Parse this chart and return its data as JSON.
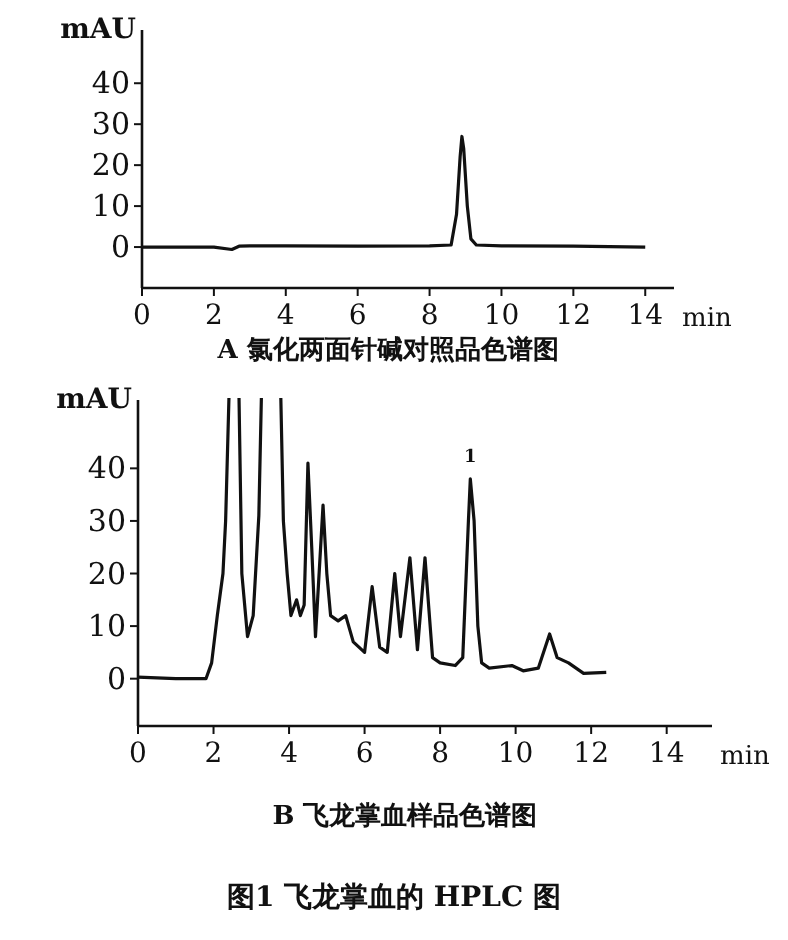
{
  "chart_data": [
    {
      "type": "line",
      "title": "A 氯化两面针碱对照品色谱图",
      "xlabel": "min",
      "ylabel": "mAU",
      "xlim": [
        0,
        14.8
      ],
      "ylim": [
        -10,
        53
      ],
      "xticks": [
        0,
        2,
        4,
        6,
        8,
        10,
        12,
        14
      ],
      "yticks": [
        0,
        10,
        20,
        30,
        40
      ],
      "grid": false,
      "marker": "none",
      "line_style": "solid",
      "series": [
        {
          "color": "#111111",
          "x": [
            0,
            2,
            2.5,
            2.7,
            3,
            4,
            6,
            8,
            8.6,
            8.75,
            8.85,
            8.9,
            8.95,
            9.05,
            9.15,
            9.3,
            10,
            12,
            14
          ],
          "values": [
            0,
            0,
            -0.6,
            0.2,
            0.3,
            0.3,
            0.2,
            0.3,
            0.5,
            8,
            22,
            27,
            24,
            10,
            2,
            0.5,
            0.3,
            0.2,
            0
          ]
        }
      ]
    },
    {
      "type": "line",
      "title": "B 飞龙掌血样品色谱图",
      "xlabel": "min",
      "ylabel": "mAU",
      "xlim": [
        0,
        15.2
      ],
      "ylim": [
        -9,
        53
      ],
      "xticks": [
        0,
        2,
        4,
        6,
        8,
        10,
        12,
        14
      ],
      "yticks": [
        0,
        10,
        20,
        30,
        40
      ],
      "grid": false,
      "marker": "none",
      "line_style": "solid",
      "annotations": [
        {
          "text": "1",
          "x": 8.8,
          "y": 40
        },
        "图1  飞龙掌血的 HPLC 图"
      ],
      "series": [
        {
          "color": "#111111",
          "x": [
            0,
            1.0,
            1.8,
            1.95,
            2.1,
            2.25,
            2.32,
            2.45,
            2.55,
            2.65,
            2.75,
            2.9,
            3.05,
            3.2,
            3.3,
            3.55,
            3.75,
            3.85,
            3.95,
            4.05,
            4.2,
            4.3,
            4.4,
            4.5,
            4.6,
            4.7,
            4.9,
            5.0,
            5.1,
            5.3,
            5.5,
            5.7,
            6.0,
            6.2,
            6.4,
            6.6,
            6.8,
            6.95,
            7.2,
            7.4,
            7.6,
            7.8,
            8.0,
            8.4,
            8.6,
            8.75,
            8.8,
            8.9,
            9.0,
            9.1,
            9.3,
            9.9,
            10.2,
            10.6,
            10.9,
            11.1,
            11.4,
            11.8,
            12.4
          ],
          "values": [
            0.3,
            0,
            0,
            3,
            12,
            20,
            30,
            null,
            null,
            null,
            20,
            8,
            12,
            31,
            null,
            null,
            null,
            30,
            20,
            12,
            15,
            12,
            14,
            41,
            25,
            8,
            33,
            20,
            12,
            11,
            12,
            7,
            5,
            17.5,
            6,
            5,
            20,
            8,
            23,
            5.5,
            23,
            4,
            3,
            2.5,
            4,
            30,
            38,
            30,
            10,
            3,
            2,
            2.5,
            1.5,
            2,
            8.5,
            4,
            3,
            1,
            1.2
          ]
        }
      ]
    }
  ]
}
